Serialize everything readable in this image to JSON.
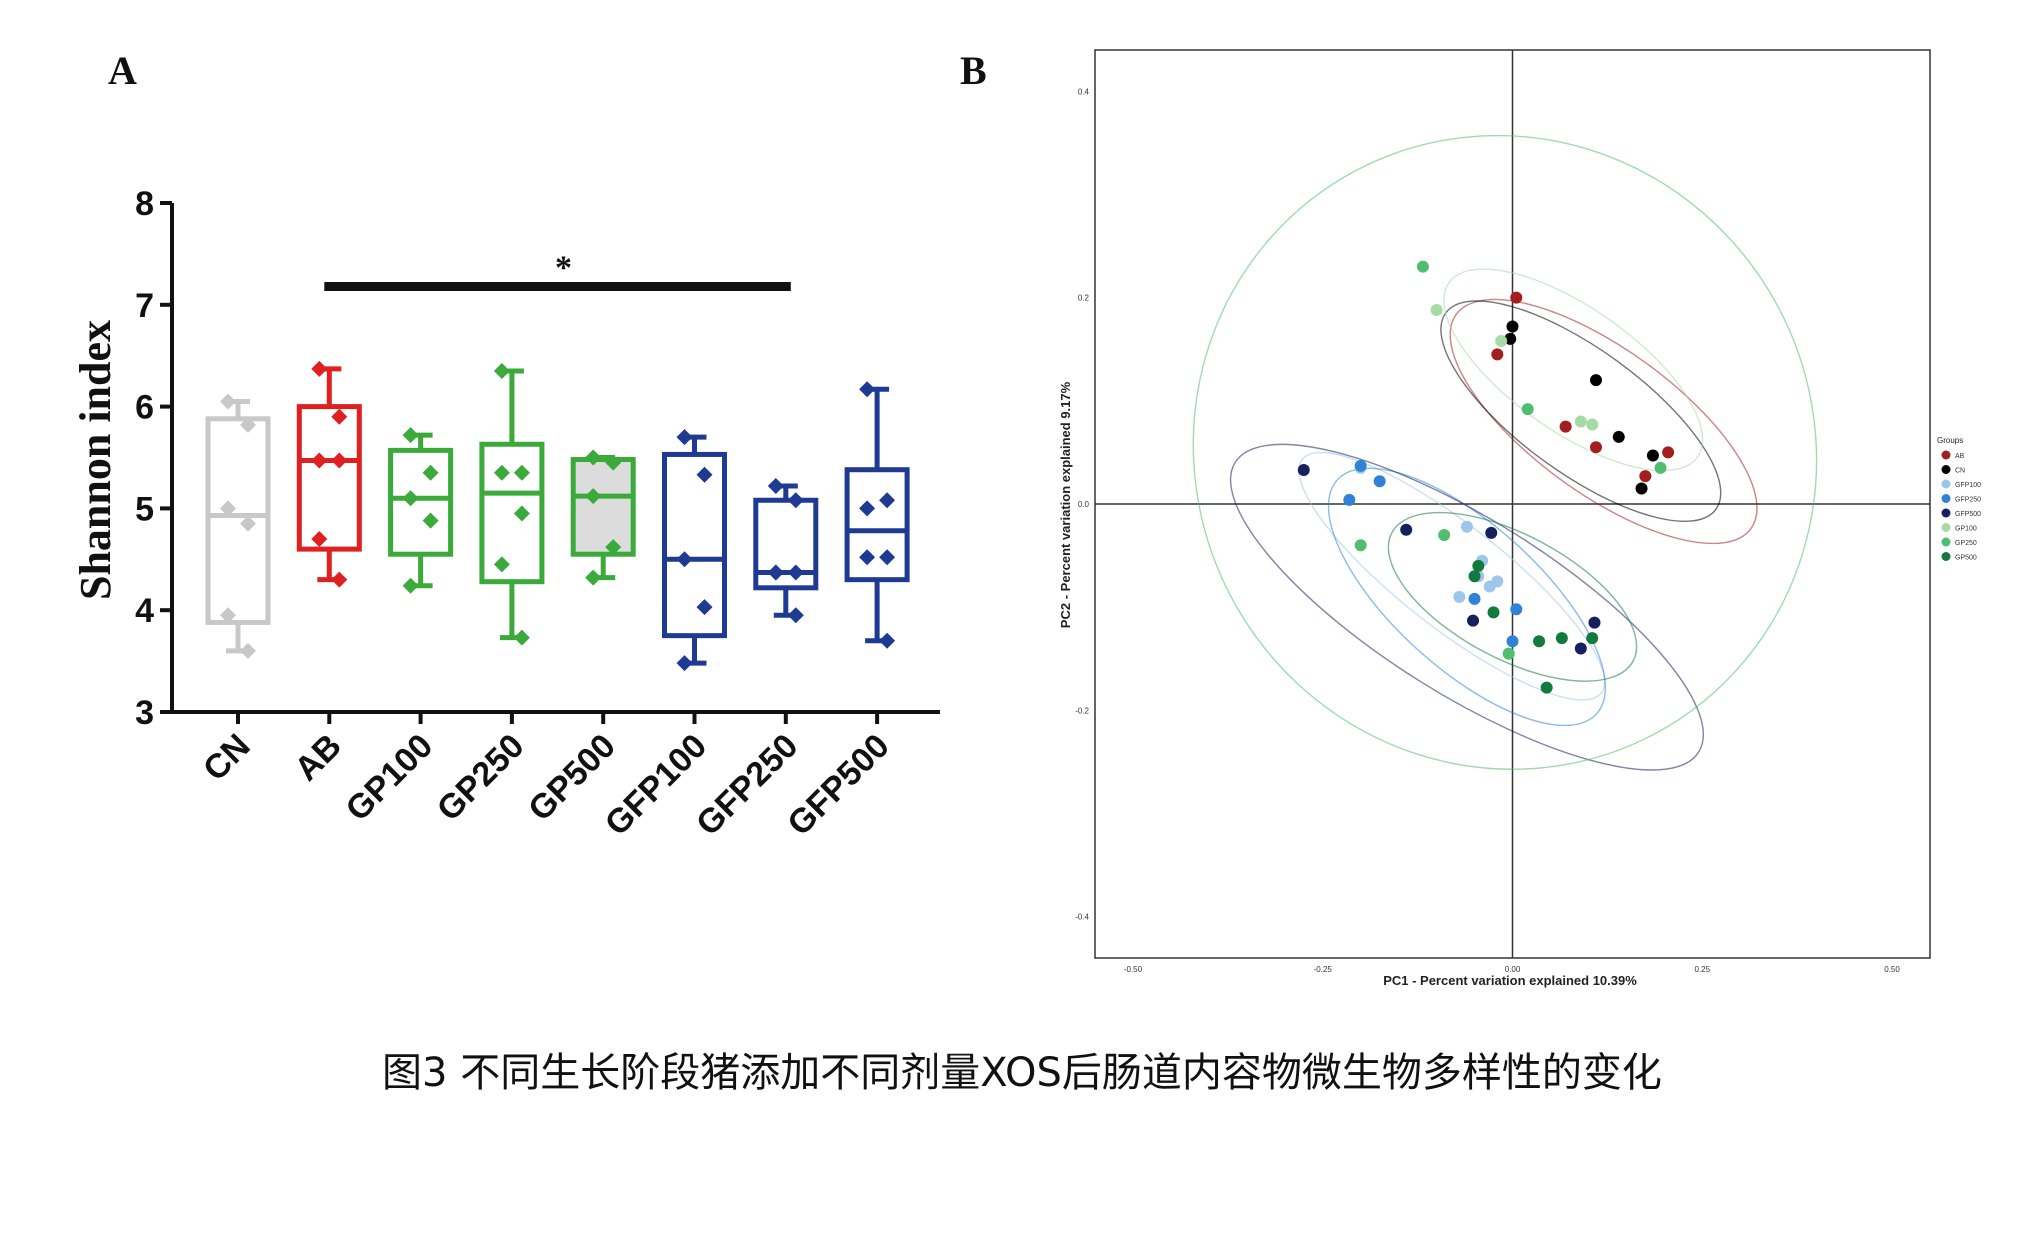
{
  "caption": "图3 不同生长阶段猪添加不同剂量XOS后肠道内容物微生物多样性的变化",
  "chart_data": [
    {
      "panel_label": "A",
      "type": "box",
      "ylabel": "Shannon index",
      "ylim": [
        3,
        8
      ],
      "yticks": [
        "3",
        "4",
        "5",
        "6",
        "7",
        "8"
      ],
      "categories": [
        "CN",
        "AB",
        "GP100",
        "GP250",
        "GP500",
        "GFP100",
        "GFP250",
        "GFP500"
      ],
      "colors": [
        "#c8c8c8",
        "#e02020",
        "#3aaa3a",
        "#3aaa3a",
        "#3aaa3a",
        "#1f3a93",
        "#1f3a93",
        "#1f3a93"
      ],
      "boxes": [
        {
          "min": 3.6,
          "q1": 3.88,
          "median": 4.93,
          "q3": 5.88,
          "max": 6.05,
          "points": [
            6.05,
            5.82,
            5.0,
            4.85,
            3.95,
            3.6
          ],
          "shaded": false
        },
        {
          "min": 4.3,
          "q1": 4.6,
          "median": 5.47,
          "q3": 6.0,
          "max": 6.37,
          "points": [
            6.37,
            5.9,
            5.47,
            5.47,
            4.7,
            4.3
          ],
          "shaded": false
        },
        {
          "min": 4.24,
          "q1": 4.55,
          "median": 5.1,
          "q3": 5.57,
          "max": 5.72,
          "points": [
            5.72,
            5.35,
            5.1,
            4.88,
            4.24
          ],
          "shaded": false
        },
        {
          "min": 3.73,
          "q1": 4.28,
          "median": 5.15,
          "q3": 5.63,
          "max": 6.35,
          "points": [
            6.35,
            5.35,
            5.35,
            4.95,
            4.45,
            3.73
          ],
          "shaded": false
        },
        {
          "min": 4.32,
          "q1": 4.55,
          "median": 5.12,
          "q3": 5.48,
          "max": 5.5,
          "points": [
            5.5,
            5.45,
            5.12,
            4.62,
            4.32
          ],
          "shaded": true
        },
        {
          "min": 3.48,
          "q1": 3.75,
          "median": 4.5,
          "q3": 5.53,
          "max": 5.7,
          "points": [
            5.7,
            5.33,
            4.5,
            4.03,
            3.48
          ],
          "shaded": false
        },
        {
          "min": 3.95,
          "q1": 4.22,
          "median": 4.37,
          "q3": 5.08,
          "max": 5.22,
          "points": [
            5.22,
            5.08,
            4.37,
            4.37,
            4.37,
            3.95
          ],
          "shaded": false
        },
        {
          "min": 3.7,
          "q1": 4.3,
          "median": 4.78,
          "q3": 5.38,
          "max": 6.17,
          "points": [
            6.17,
            5.08,
            5.0,
            4.52,
            4.52,
            3.7
          ],
          "shaded": false
        }
      ],
      "significance": {
        "from": "AB",
        "to": "GFP250",
        "label": "*",
        "y": 7.18
      }
    },
    {
      "panel_label": "B",
      "type": "scatter",
      "xlabel": "PC1 - Percent variation explained 10.39%",
      "ylabel": "PC2 - Percent variation explained 9.17%",
      "xlim": [
        -0.55,
        0.55
      ],
      "ylim": [
        -0.44,
        0.44
      ],
      "xticks": [
        -0.5,
        -0.25,
        0.0,
        0.25,
        0.5
      ],
      "xtick_labels": [
        "-0.50",
        "-0.25",
        "0.00",
        "0.25",
        "0.50"
      ],
      "yticks": [
        -0.4,
        -0.2,
        0.0,
        0.2,
        0.4
      ],
      "ytick_labels": [
        "-0.4",
        "-0.2",
        "0.0",
        "0.2",
        "0.4"
      ],
      "legend_title": "Groups",
      "legend_position": "right",
      "series": [
        {
          "name": "AB",
          "color": "#a31f1f",
          "points": [
            [
              0.005,
              0.2
            ],
            [
              -0.02,
              0.145
            ],
            [
              0.07,
              0.075
            ],
            [
              0.11,
              0.055
            ],
            [
              0.175,
              0.027
            ],
            [
              0.205,
              0.05
            ]
          ],
          "ellipse": {
            "cx": 0.12,
            "cy": 0.08,
            "rx": 0.24,
            "ry": 0.07,
            "angle": 36
          }
        },
        {
          "name": "CN",
          "color": "#000000",
          "points": [
            [
              -0.003,
              0.16
            ],
            [
              0.0,
              0.172
            ],
            [
              0.11,
              0.12
            ],
            [
              0.14,
              0.065
            ],
            [
              0.185,
              0.047
            ],
            [
              0.17,
              0.015
            ]
          ],
          "ellipse": {
            "cx": 0.09,
            "cy": 0.09,
            "rx": 0.22,
            "ry": 0.06,
            "angle": 36
          }
        },
        {
          "name": "GFP100",
          "color": "#9cc7ea",
          "points": [
            [
              -0.2,
              0.035
            ],
            [
              -0.06,
              -0.022
            ],
            [
              -0.04,
              -0.055
            ],
            [
              -0.045,
              -0.07
            ],
            [
              -0.07,
              -0.09
            ],
            [
              -0.03,
              -0.08
            ],
            [
              -0.02,
              -0.075
            ]
          ],
          "ellipse": {
            "cx": -0.08,
            "cy": -0.07,
            "rx": 0.25,
            "ry": 0.05,
            "angle": 38
          }
        },
        {
          "name": "GFP250",
          "color": "#2f82d4",
          "points": [
            [
              -0.2,
              0.037
            ],
            [
              -0.175,
              0.022
            ],
            [
              -0.215,
              0.004
            ],
            [
              -0.05,
              -0.092
            ],
            [
              0.005,
              -0.102
            ],
            [
              0.0,
              -0.133
            ]
          ],
          "ellipse": {
            "cx": -0.06,
            "cy": -0.09,
            "rx": 0.23,
            "ry": 0.07,
            "angle": 42
          }
        },
        {
          "name": "GFP500",
          "color": "#16205c",
          "points": [
            [
              -0.275,
              0.033
            ],
            [
              -0.14,
              -0.025
            ],
            [
              -0.028,
              -0.028
            ],
            [
              -0.052,
              -0.113
            ],
            [
              0.09,
              -0.14
            ],
            [
              0.108,
              -0.115
            ]
          ],
          "ellipse": {
            "cx": -0.06,
            "cy": -0.1,
            "rx": 0.36,
            "ry": 0.085,
            "angle": 32
          }
        },
        {
          "name": "GP100",
          "color": "#a6dba4",
          "points": [
            [
              -0.015,
              0.158
            ],
            [
              0.09,
              0.08
            ],
            [
              0.105,
              0.077
            ],
            [
              -0.1,
              0.188
            ]
          ],
          "ellipse": {
            "cx": 0.08,
            "cy": 0.13,
            "rx": 0.2,
            "ry": 0.06,
            "angle": 35
          }
        },
        {
          "name": "GP250",
          "color": "#4fbf6f",
          "points": [
            [
              -0.118,
              0.23
            ],
            [
              0.02,
              0.092
            ],
            [
              0.195,
              0.035
            ],
            [
              -0.2,
              -0.04
            ],
            [
              -0.09,
              -0.03
            ],
            [
              -0.005,
              -0.145
            ]
          ],
          "ellipse": {
            "cx": -0.01,
            "cy": 0.05,
            "rx": 0.42,
            "ry": 0.3,
            "angle": 62
          }
        },
        {
          "name": "GP500",
          "color": "#127a3c",
          "points": [
            [
              -0.045,
              -0.06
            ],
            [
              -0.05,
              -0.07
            ],
            [
              -0.025,
              -0.105
            ],
            [
              0.035,
              -0.133
            ],
            [
              0.065,
              -0.13
            ],
            [
              0.105,
              -0.13
            ],
            [
              0.045,
              -0.178
            ]
          ],
          "ellipse": {
            "cx": 0.0,
            "cy": -0.09,
            "rx": 0.18,
            "ry": 0.06,
            "angle": 28
          }
        }
      ]
    }
  ]
}
